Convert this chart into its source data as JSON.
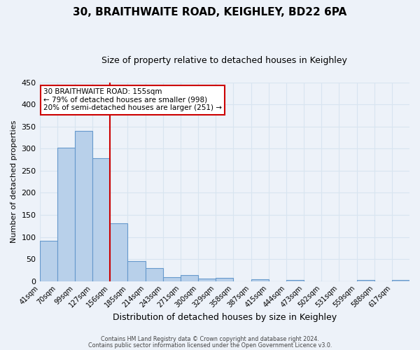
{
  "title": "30, BRAITHWAITE ROAD, KEIGHLEY, BD22 6PA",
  "subtitle": "Size of property relative to detached houses in Keighley",
  "xlabel": "Distribution of detached houses by size in Keighley",
  "ylabel": "Number of detached properties",
  "bin_labels": [
    "41sqm",
    "70sqm",
    "99sqm",
    "127sqm",
    "156sqm",
    "185sqm",
    "214sqm",
    "243sqm",
    "271sqm",
    "300sqm",
    "329sqm",
    "358sqm",
    "387sqm",
    "415sqm",
    "444sqm",
    "473sqm",
    "502sqm",
    "531sqm",
    "559sqm",
    "588sqm",
    "617sqm"
  ],
  "bar_heights": [
    92,
    303,
    340,
    279,
    131,
    46,
    30,
    9,
    13,
    6,
    8,
    0,
    5,
    0,
    3,
    0,
    0,
    0,
    2,
    0,
    2
  ],
  "bar_color": "#b8d0ea",
  "bar_edge_color": "#6699cc",
  "ylim": [
    0,
    450
  ],
  "yticks": [
    0,
    50,
    100,
    150,
    200,
    250,
    300,
    350,
    400,
    450
  ],
  "vline_x_index": 4,
  "vline_color": "#cc0000",
  "annotation_line1": "30 BRAITHWAITE ROAD: 155sqm",
  "annotation_line2": "← 79% of detached houses are smaller (998)",
  "annotation_line3": "20% of semi-detached houses are larger (251) →",
  "annotation_box_color": "#ffffff",
  "annotation_box_edge": "#cc0000",
  "footer_line1": "Contains HM Land Registry data © Crown copyright and database right 2024.",
  "footer_line2": "Contains public sector information licensed under the Open Government Licence v3.0.",
  "background_color": "#edf2f9",
  "grid_color": "#d8e4f0",
  "title_fontsize": 11,
  "subtitle_fontsize": 9,
  "ylabel_fontsize": 8,
  "xlabel_fontsize": 9
}
